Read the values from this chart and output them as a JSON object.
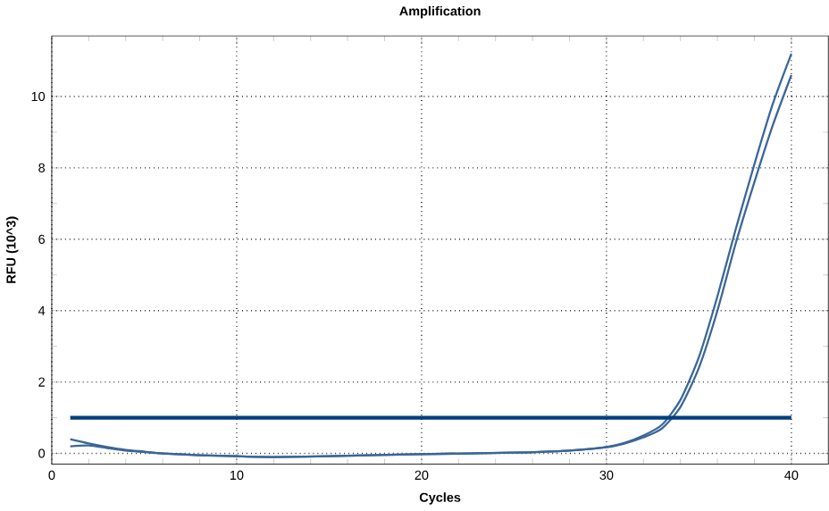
{
  "chart_data": {
    "type": "line",
    "title": "Amplification",
    "xlabel": "Cycles",
    "ylabel": "RFU (10^3)",
    "xlim": [
      0,
      42
    ],
    "xticks": [
      0,
      10,
      20,
      30,
      40
    ],
    "ylim": [
      -0.3,
      11.7
    ],
    "yticks": [
      0,
      2,
      4,
      6,
      8,
      10
    ],
    "grid": true,
    "marker": "none",
    "line_style": "solid",
    "x": [
      1,
      2,
      3,
      4,
      5,
      6,
      8,
      10,
      12,
      15,
      20,
      25,
      28,
      30,
      31,
      32,
      33,
      34,
      35,
      36,
      37,
      38,
      39,
      40
    ],
    "series": [
      {
        "color": "#3a6699",
        "values": [
          0.4,
          0.28,
          0.18,
          0.1,
          0.05,
          0.0,
          -0.05,
          -0.08,
          -0.1,
          -0.08,
          -0.02,
          0.02,
          0.08,
          0.18,
          0.3,
          0.5,
          0.8,
          1.5,
          2.7,
          4.4,
          6.3,
          8.1,
          9.8,
          11.2
        ]
      },
      {
        "color": "#3a6699",
        "values": [
          0.2,
          0.22,
          0.15,
          0.08,
          0.04,
          0.0,
          -0.05,
          -0.08,
          -0.1,
          -0.08,
          -0.02,
          0.02,
          0.08,
          0.17,
          0.28,
          0.45,
          0.7,
          1.3,
          2.4,
          4.0,
          5.9,
          7.6,
          9.2,
          10.6
        ]
      }
    ],
    "ref_lines": [
      {
        "axis": "y",
        "value": 1,
        "color": "#003f7f"
      }
    ]
  }
}
